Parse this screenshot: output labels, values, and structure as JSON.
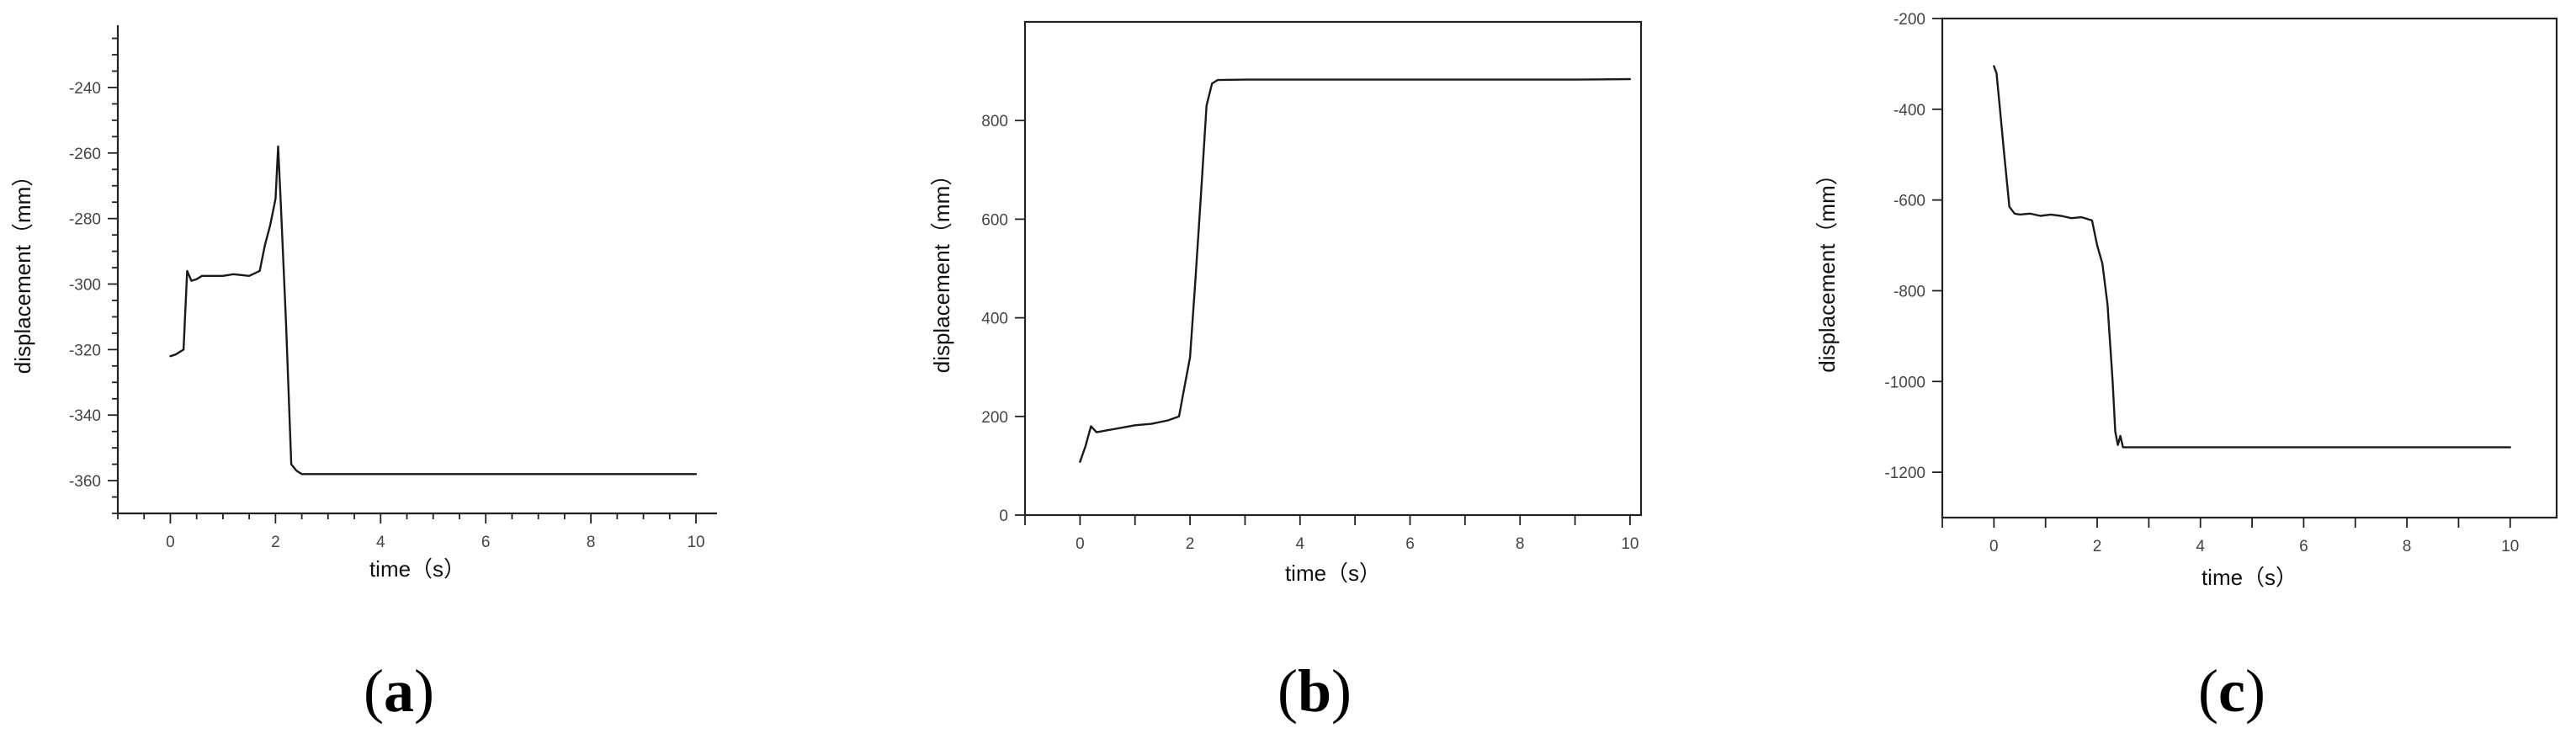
{
  "chart_data": [
    {
      "type": "line",
      "panel_label": "(a)",
      "xlabel": "time（s）",
      "ylabel": "displacement（mm）",
      "xlim": [
        -1,
        10.4
      ],
      "ylim": [
        -370,
        -221
      ],
      "xticks": [
        0,
        2,
        4,
        6,
        8,
        10
      ],
      "yticks": [
        -360,
        -340,
        -320,
        -300,
        -280,
        -260,
        -240
      ],
      "x_minor_step": 0.5,
      "y_minor_step": 5,
      "frame": "left-bottom",
      "grid": false,
      "series": [
        {
          "x": [
            0,
            0.1,
            0.25,
            0.32,
            0.4,
            0.5,
            0.6,
            0.8,
            1.0,
            1.2,
            1.5,
            1.7,
            1.8,
            1.9,
            2.0,
            2.05,
            2.1,
            2.2,
            2.3,
            2.4,
            2.5,
            3,
            4,
            5,
            6,
            7,
            8,
            9,
            10
          ],
          "y": [
            -322,
            -321.5,
            -320,
            -296,
            -299,
            -298.5,
            -297.5,
            -297.5,
            -297.5,
            -297,
            -297.5,
            -296,
            -288,
            -282,
            -274,
            -258,
            -275,
            -312,
            -355,
            -357,
            -358,
            -358,
            -358,
            -358,
            -358,
            -358,
            -358,
            -358,
            -358
          ]
        }
      ]
    },
    {
      "type": "line",
      "panel_label": "(b)",
      "xlabel": "time（s）",
      "ylabel": "displacement（mm）",
      "xlim": [
        -1,
        10.2
      ],
      "ylim": [
        0,
        1000
      ],
      "xticks": [
        0,
        2,
        4,
        6,
        8,
        10
      ],
      "yticks": [
        0,
        200,
        400,
        600,
        800
      ],
      "frame": "box",
      "grid": false,
      "series": [
        {
          "x": [
            0,
            0.1,
            0.2,
            0.3,
            0.5,
            0.8,
            1.0,
            1.3,
            1.6,
            1.8,
            1.9,
            2.0,
            2.1,
            2.2,
            2.3,
            2.4,
            2.5,
            3,
            4,
            5,
            6,
            7,
            8,
            9,
            10
          ],
          "y": [
            108,
            140,
            180,
            168,
            172,
            178,
            182,
            185,
            192,
            200,
            260,
            320,
            480,
            650,
            830,
            875,
            882,
            883,
            883,
            883,
            883,
            883,
            883,
            883,
            884
          ]
        }
      ]
    },
    {
      "type": "line",
      "panel_label": "(c)",
      "xlabel": "time（s）",
      "ylabel": "displacement（mm）",
      "xlim": [
        -1,
        10.9
      ],
      "ylim": [
        -1300,
        -200
      ],
      "xticks": [
        0,
        2,
        4,
        6,
        8,
        10
      ],
      "yticks": [
        -1200,
        -1000,
        -800,
        -600,
        -400,
        -200
      ],
      "frame": "box",
      "grid": false,
      "series": [
        {
          "x": [
            0,
            0.05,
            0.1,
            0.2,
            0.3,
            0.4,
            0.5,
            0.7,
            0.9,
            1.1,
            1.3,
            1.5,
            1.7,
            1.9,
            2.0,
            2.1,
            2.2,
            2.3,
            2.35,
            2.4,
            2.45,
            2.5,
            2.6,
            3,
            4,
            5,
            6,
            7,
            8,
            9,
            10
          ],
          "y": [
            -305,
            -320,
            -380,
            -500,
            -615,
            -630,
            -632,
            -630,
            -635,
            -632,
            -635,
            -640,
            -638,
            -645,
            -700,
            -740,
            -830,
            -1000,
            -1110,
            -1140,
            -1120,
            -1145,
            -1145,
            -1145,
            -1145,
            -1145,
            -1145,
            -1145,
            -1145,
            -1145,
            -1145
          ]
        }
      ]
    }
  ]
}
